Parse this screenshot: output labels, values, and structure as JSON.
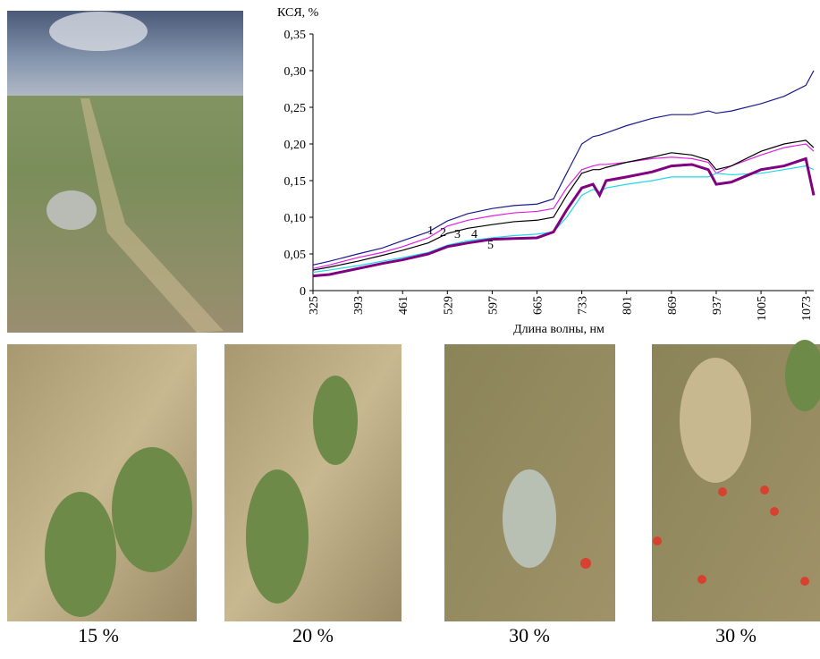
{
  "chart_data": {
    "type": "line",
    "y_label": "КСЯ, %",
    "x_label": "Длина волны, нм",
    "x": [
      325,
      350,
      393,
      430,
      461,
      500,
      529,
      560,
      597,
      630,
      665,
      690,
      710,
      733,
      750,
      760,
      770,
      801,
      840,
      869,
      900,
      925,
      937,
      960,
      1005,
      1040,
      1073,
      1085
    ],
    "series": [
      {
        "name": "1",
        "color": "#1a1a8c",
        "values": [
          0.035,
          0.04,
          0.05,
          0.058,
          0.068,
          0.08,
          0.095,
          0.105,
          0.112,
          0.116,
          0.118,
          0.125,
          0.16,
          0.2,
          0.21,
          0.212,
          0.215,
          0.225,
          0.235,
          0.24,
          0.24,
          0.245,
          0.242,
          0.245,
          0.255,
          0.265,
          0.28,
          0.3
        ]
      },
      {
        "name": "2",
        "color": "#e020e0",
        "values": [
          0.03,
          0.035,
          0.045,
          0.052,
          0.06,
          0.072,
          0.088,
          0.096,
          0.102,
          0.106,
          0.108,
          0.112,
          0.14,
          0.165,
          0.17,
          0.172,
          0.172,
          0.175,
          0.18,
          0.182,
          0.18,
          0.175,
          0.16,
          0.17,
          0.185,
          0.195,
          0.2,
          0.19
        ]
      },
      {
        "name": "3",
        "color": "#000000",
        "values": [
          0.028,
          0.032,
          0.04,
          0.048,
          0.055,
          0.065,
          0.078,
          0.085,
          0.09,
          0.094,
          0.096,
          0.1,
          0.13,
          0.16,
          0.165,
          0.165,
          0.168,
          0.175,
          0.182,
          0.188,
          0.185,
          0.178,
          0.165,
          0.17,
          0.19,
          0.2,
          0.205,
          0.195
        ]
      },
      {
        "name": "4",
        "color": "#20d8e8",
        "values": [
          0.025,
          0.028,
          0.034,
          0.04,
          0.045,
          0.052,
          0.062,
          0.068,
          0.072,
          0.075,
          0.077,
          0.08,
          0.1,
          0.13,
          0.138,
          0.135,
          0.14,
          0.145,
          0.15,
          0.155,
          0.155,
          0.155,
          0.16,
          0.158,
          0.16,
          0.165,
          0.17,
          0.165
        ]
      },
      {
        "name": "5",
        "color": "#800080",
        "values": [
          0.02,
          0.022,
          0.03,
          0.037,
          0.042,
          0.05,
          0.06,
          0.065,
          0.07,
          0.071,
          0.072,
          0.08,
          0.11,
          0.14,
          0.145,
          0.13,
          0.15,
          0.155,
          0.162,
          0.17,
          0.172,
          0.165,
          0.145,
          0.148,
          0.165,
          0.17,
          0.18,
          0.13
        ]
      }
    ],
    "xlim": [
      325,
      1085
    ],
    "xticks": [
      325,
      393,
      461,
      529,
      597,
      665,
      733,
      801,
      869,
      937,
      1005,
      1073
    ],
    "ylim": [
      0,
      0.35
    ],
    "yticks": [
      0,
      {
        "value": 0.05,
        "label": "0,05"
      },
      {
        "value": 0.1,
        "label": "0,10"
      },
      {
        "value": 0.15,
        "label": "0,15"
      },
      {
        "value": 0.2,
        "label": "0,20"
      },
      {
        "value": 0.25,
        "label": "0,25"
      },
      {
        "value": 0.3,
        "label": "0,30"
      },
      {
        "value": 0.35,
        "label": "0,35"
      }
    ]
  },
  "captions": [
    "15 %",
    "20 %",
    "30 %",
    "30 %"
  ]
}
